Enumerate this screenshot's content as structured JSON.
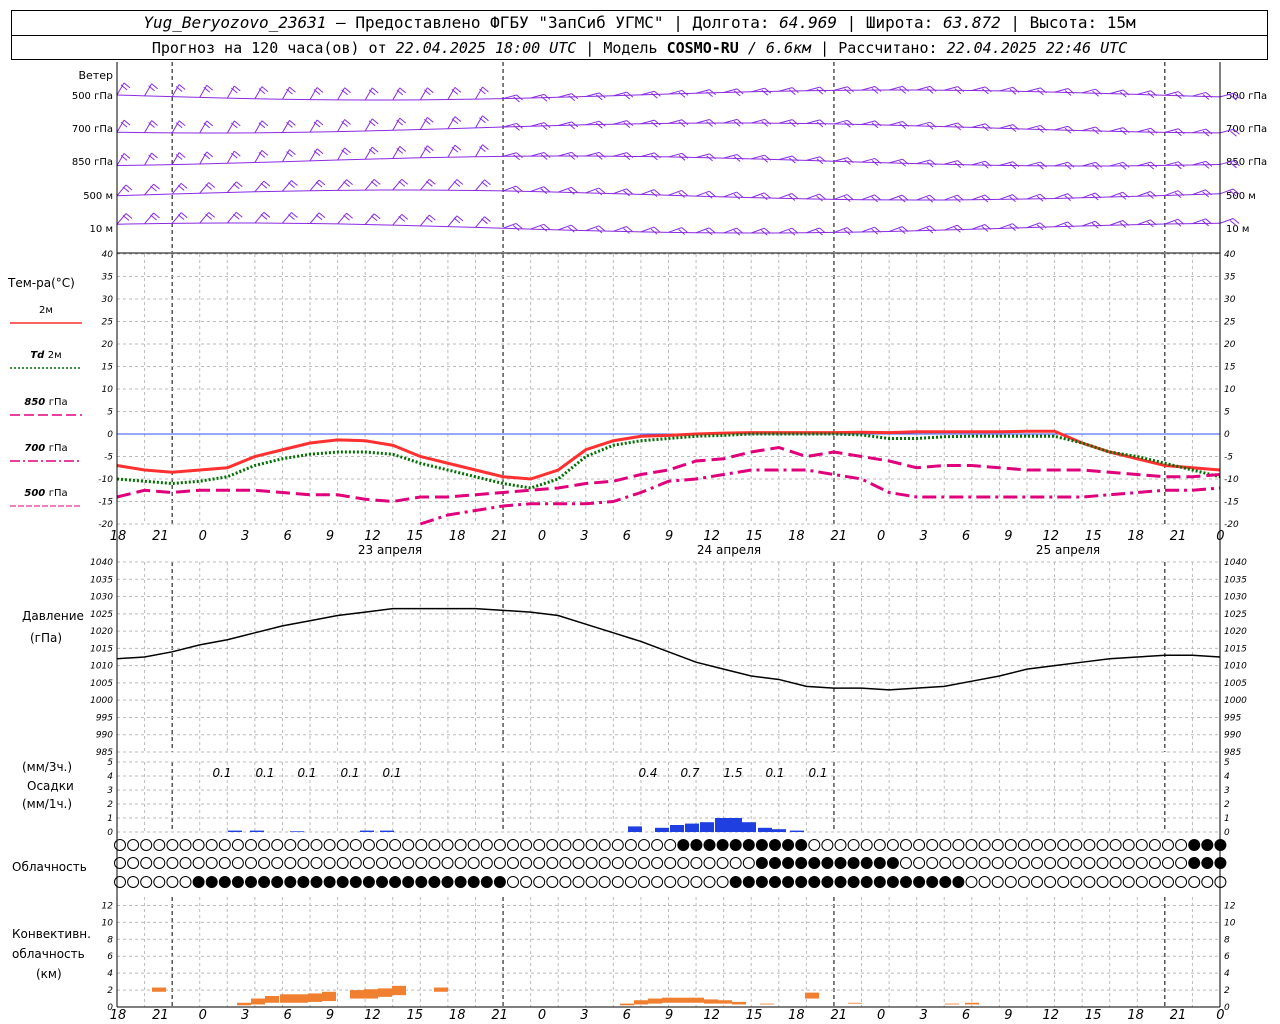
{
  "header": {
    "station": "Yug_Beryozovo_23631",
    "dash": "–",
    "provider": "Предоставлено ФГБУ \"ЗапСиб УГМС\"",
    "lon_label": "Долгота:",
    "lon_value": "64.969",
    "lat_label": "Широта:",
    "lat_value": "63.872",
    "alt_label": "Высота:",
    "alt_value": "15м",
    "forecast_label": "Прогноз на 120 часа(ов) от",
    "forecast_start": "22.04.2025 18:00 UTC",
    "model_label": "Модель",
    "model_name": "COSMO-RU",
    "model_res": "/ 6.6км",
    "calc_label": "Рассчитано:",
    "calc_time": "22.04.2025 22:46 UTC"
  },
  "x_axis": {
    "hour_labels": [
      "18",
      "21",
      "0",
      "3",
      "6",
      "9",
      "12",
      "15",
      "18",
      "21",
      "0",
      "3",
      "6",
      "9",
      "12",
      "15",
      "18",
      "21",
      "0",
      "3",
      "6",
      "9",
      "12",
      "15",
      "18",
      "21",
      "0"
    ],
    "dates": [
      "23 апреля",
      "24 апреля",
      "25 апреля"
    ]
  },
  "wind": {
    "title": "Ветер",
    "levels": [
      "500 гПа",
      "700 гПа",
      "850 гПа",
      "500 м",
      "10 м"
    ],
    "color": "#8a2be2"
  },
  "temperature": {
    "title": "Тем-ра(°С)",
    "yticks": [
      40,
      35,
      30,
      25,
      20,
      15,
      10,
      5,
      0,
      -5,
      -10,
      -15,
      -20
    ],
    "legend": [
      {
        "label": "2м",
        "style": "solid",
        "color": "#ff3030"
      },
      {
        "label_it": "Td",
        "label": "2м",
        "style": "dotted",
        "color": "#007000"
      },
      {
        "label_it": "850",
        "label": "гПа",
        "style": "dash",
        "color": "#e0007c"
      },
      {
        "label_it": "700",
        "label": "гПа",
        "style": "dashdot",
        "color": "#e0007c"
      },
      {
        "label_it": "500",
        "label": "гПа",
        "style": "thin",
        "color": "#e0007c"
      }
    ]
  },
  "pressure": {
    "title": "Давление",
    "unit": "(гПа)",
    "yticks": [
      1040,
      1035,
      1030,
      1025,
      1020,
      1015,
      1010,
      1005,
      1000,
      995,
      990,
      985
    ]
  },
  "precip": {
    "unit_top": "(мм/3ч.)",
    "title": "Осадки",
    "unit_bottom": "(мм/1ч.)",
    "yticks": [
      5,
      4,
      3,
      2,
      1,
      0
    ],
    "labels": [
      "0.1",
      "0.1",
      "0.1",
      "0.1",
      "0.1",
      "0.4",
      "0.7",
      "1.5",
      "0.1",
      "0.1"
    ]
  },
  "clouds": {
    "title": "Облачность"
  },
  "convective": {
    "title1": "Конвективн.",
    "title2": "облачность",
    "unit": "(км)",
    "yticks": [
      12,
      10,
      8,
      6,
      4,
      2,
      0
    ],
    "color": "#f08030"
  },
  "chart_data": {
    "type": "line",
    "x_hours": [
      0,
      3,
      6,
      9,
      12,
      15,
      18,
      21,
      24,
      27,
      30,
      33,
      36,
      39,
      42,
      45,
      48,
      51,
      54,
      57,
      60,
      63,
      66,
      69,
      72,
      75,
      78,
      81,
      84,
      87,
      90,
      93,
      96,
      99,
      102,
      105,
      108,
      111,
      114,
      117,
      120
    ],
    "series": [
      {
        "name": "2м",
        "values": [
          -7,
          -8,
          -8.5,
          -8,
          -7.5,
          -5,
          -3.5,
          -2,
          -1.3,
          -1.5,
          -2.5,
          -5,
          -6.5,
          -8,
          -9.5,
          -10,
          -8,
          -3.5,
          -1.5,
          -0.5,
          -0.3,
          0,
          0.2,
          0.3,
          0.3,
          0.3,
          0.3,
          0.4,
          0.3,
          0.5,
          0.5,
          0.5,
          0.5,
          0.6,
          0.6,
          -2,
          -4,
          -5.5,
          -7,
          -7.5,
          -8
        ]
      },
      {
        "name": "Td 2м",
        "values": [
          -10,
          -10.5,
          -11,
          -10.5,
          -9.5,
          -7,
          -5.5,
          -4.5,
          -4,
          -4,
          -4.5,
          -6.5,
          -8,
          -9.5,
          -11,
          -12,
          -10,
          -5,
          -2.5,
          -1.5,
          -1,
          -0.5,
          -0.3,
          0,
          0,
          0,
          0,
          -0.2,
          -1,
          -1,
          -0.6,
          -0.5,
          -0.5,
          -0.5,
          -0.5,
          -2,
          -4,
          -5,
          -6.5,
          -8,
          -9.5
        ]
      },
      {
        "name": "850 гПа",
        "values": [
          -14,
          -12.5,
          -13,
          -12.5,
          -12.5,
          -12.5,
          -13,
          -13.5,
          -13.5,
          -14.5,
          -15,
          -14,
          -14,
          -13.5,
          -13,
          -12.5,
          -12,
          -11,
          -10.5,
          -9,
          -8,
          -6,
          -5.5,
          -4,
          -3,
          -5,
          -4,
          -5,
          -6,
          -7.5,
          -7,
          -7,
          -7.5,
          -8,
          -8,
          -8,
          -8.5,
          -9,
          -9.5,
          -9.5,
          -9
        ]
      },
      {
        "name": "700 гПа",
        "values": [
          null,
          null,
          null,
          null,
          null,
          null,
          null,
          null,
          null,
          null,
          null,
          -20,
          -18,
          -17,
          -16,
          -15.5,
          -15.5,
          -15.5,
          -15,
          -13,
          -10.5,
          -10,
          -9,
          -8,
          -8,
          -8,
          -9,
          -10,
          -13,
          -14,
          -14,
          -14,
          -14,
          -14,
          -14,
          -14,
          -13.5,
          -13,
          -12.5,
          -12.5,
          -12
        ]
      },
      {
        "name": "Давление",
        "values": [
          1012,
          1012.5,
          1014,
          1016,
          1017.5,
          1019.5,
          1021.5,
          1023,
          1024.5,
          1025.5,
          1026.5,
          1026.5,
          1026.5,
          1026.5,
          1026,
          1025.5,
          1024.5,
          1022,
          1019.5,
          1017,
          1014,
          1011,
          1009,
          1007,
          1006,
          1004,
          1003.5,
          1003.5,
          1003,
          1003.5,
          1004,
          1005.5,
          1007,
          1009,
          1010,
          1011,
          1012,
          1012.5,
          1013,
          1013,
          1012.5
        ]
      }
    ],
    "temp_ylim": [
      -20,
      40
    ],
    "pressure_ylim": [
      985,
      1040
    ]
  }
}
